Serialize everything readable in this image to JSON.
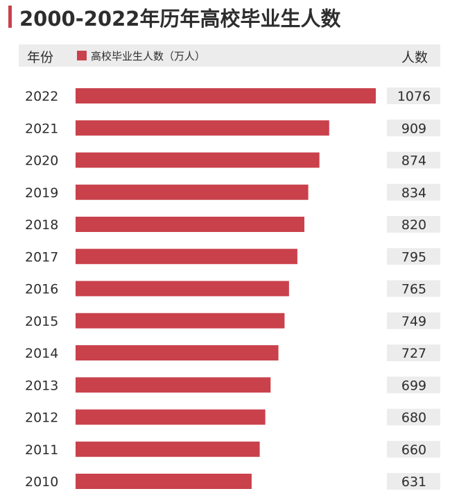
{
  "title": "2000-2022年历年高校毕业生人数",
  "header": {
    "year_label": "年份",
    "legend_label": "高校毕业生人数（万人）",
    "count_label": "人数"
  },
  "colors": {
    "bar": "#c9414b",
    "header_bg": "#ececec",
    "value_bg": "#ececec"
  },
  "chart_data": {
    "type": "bar",
    "orientation": "horizontal",
    "title": "2000-2022年历年高校毕业生人数",
    "categories": [
      "2022",
      "2021",
      "2020",
      "2019",
      "2018",
      "2017",
      "2016",
      "2015",
      "2014",
      "2013",
      "2012",
      "2011",
      "2010"
    ],
    "series": [
      {
        "name": "高校毕业生人数（万人）",
        "values": [
          1076,
          909,
          874,
          834,
          820,
          795,
          765,
          749,
          727,
          699,
          680,
          660,
          631
        ]
      }
    ],
    "xlabel": "",
    "ylabel": "年份",
    "value_column_label": "人数",
    "grid": false,
    "legend": "top-left"
  }
}
